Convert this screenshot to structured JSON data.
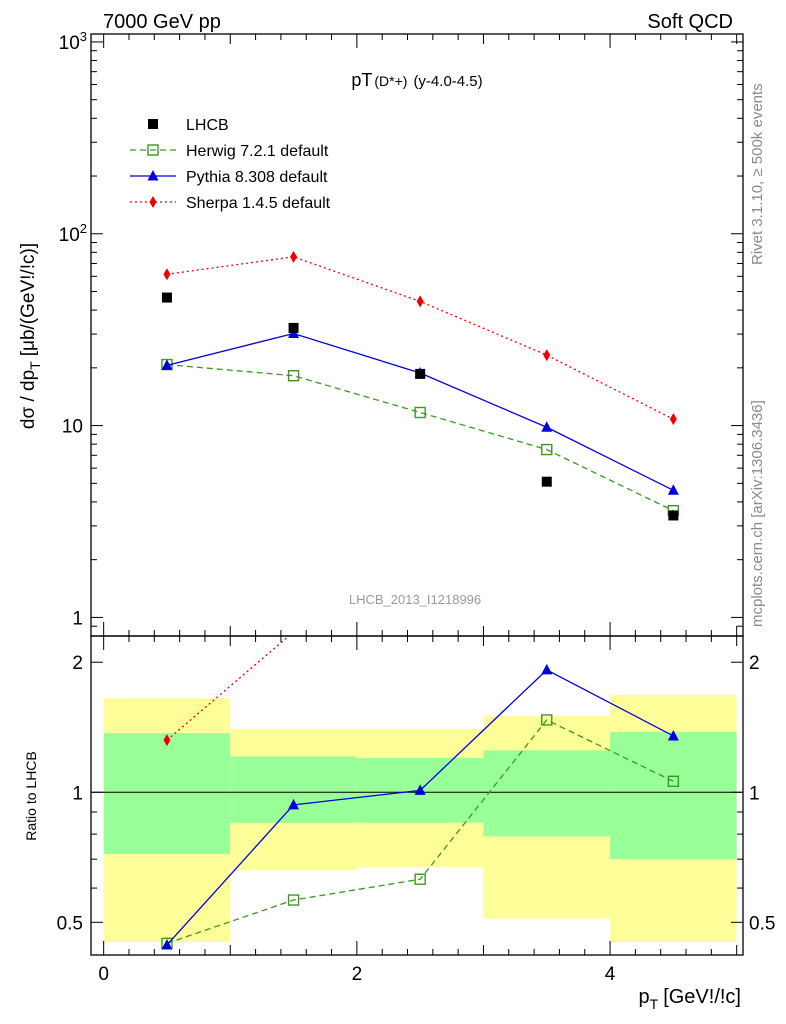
{
  "header": {
    "left": "7000 GeV pp",
    "right": "Soft QCD"
  },
  "side": {
    "rivet": "Rivet 3.1.10, ≥ 500k events",
    "mcplots": "mcplots.cern.ch [arXiv:1306.3436]"
  },
  "chart_data": [
    {
      "type": "scatter",
      "title": "pT",
      "title_sub": "(D*+)",
      "title_rest": "(y-4.0-4.5)",
      "watermark": "LHCB_2013_I1218996",
      "xlabel": "",
      "ylabel": "dσ / dp",
      "ylabel_sub": "T",
      "ylabel_unit": "[μb/(GeV!/!c)]",
      "yscale": "log",
      "ylim": [
        0.8,
        1100
      ],
      "xlim": [
        -0.1,
        5.05
      ],
      "yticks": [
        {
          "v": 1,
          "label": "1"
        },
        {
          "v": 10,
          "label": "10"
        },
        {
          "v": 100,
          "label": "10",
          "exp": "2"
        },
        {
          "v": 1000,
          "label": "10",
          "exp": "3"
        }
      ],
      "legend_position": "top-left",
      "x": [
        0.5,
        1.5,
        2.5,
        3.5,
        4.5
      ],
      "series": [
        {
          "name": "LHCB",
          "color": "#000000",
          "marker": "square",
          "line": "none",
          "values": [
            46.5,
            32.3,
            18.6,
            5.1,
            3.4
          ]
        },
        {
          "name": "Herwig 7.2.1 default",
          "color": "#3a9a1e",
          "marker": "open-square",
          "line": "dashed",
          "values": [
            20.8,
            18.2,
            11.7,
            7.5,
            3.6
          ]
        },
        {
          "name": "Pythia 8.308 default",
          "color": "#0000dd",
          "marker": "triangle",
          "line": "solid",
          "values": [
            20.6,
            30.2,
            18.8,
            9.8,
            4.6
          ]
        },
        {
          "name": "Sherpa 1.4.5 default",
          "color": "#ee0000",
          "marker": "diamond",
          "line": "dotted",
          "values": [
            61.5,
            75.8,
            44.4,
            23.3,
            10.8
          ]
        }
      ]
    },
    {
      "type": "scatter",
      "title": "",
      "xlabel": "p",
      "xlabel_sub": "T",
      "xlabel_unit": "[GeV!/!c]",
      "ylabel": "Ratio to LHCB",
      "yscale": "log",
      "ylim": [
        0.42,
        2.3
      ],
      "xlim": [
        -0.1,
        5.05
      ],
      "xticks": [
        {
          "v": 0,
          "label": "0"
        },
        {
          "v": 2,
          "label": "2"
        },
        {
          "v": 4,
          "label": "4"
        }
      ],
      "yticks": [
        {
          "v": 0.5,
          "label": "0.5"
        },
        {
          "v": 1,
          "label": "1"
        },
        {
          "v": 2,
          "label": "2"
        }
      ],
      "x": [
        0.5,
        1.5,
        2.5,
        3.5,
        4.5
      ],
      "bins": [
        [
          0,
          1
        ],
        [
          1,
          2
        ],
        [
          2,
          3
        ],
        [
          3,
          4
        ],
        [
          4,
          5
        ]
      ],
      "band_outer": [
        [
          0.45,
          1.65
        ],
        [
          0.66,
          1.4
        ],
        [
          0.67,
          1.4
        ],
        [
          0.51,
          1.5
        ],
        [
          0.45,
          1.68
        ]
      ],
      "band_inner": [
        [
          0.72,
          1.37
        ],
        [
          0.85,
          1.21
        ],
        [
          0.85,
          1.2
        ],
        [
          0.79,
          1.25
        ],
        [
          0.7,
          1.38
        ]
      ],
      "band_colors": {
        "outer": "#fefe99",
        "inner": "#99ff99"
      },
      "series": [
        {
          "name": "Herwig 7.2.1 default",
          "color": "#3a9a1e",
          "values": [
            0.447,
            0.563,
            0.629,
            1.47,
            1.06
          ]
        },
        {
          "name": "Pythia 8.308 default",
          "color": "#0000dd",
          "values": [
            0.443,
            0.935,
            1.01,
            1.92,
            1.35
          ]
        },
        {
          "name": "Sherpa 1.4.5 default",
          "color": "#ee0000",
          "values": [
            1.32,
            2.35,
            2.39,
            null,
            null
          ]
        }
      ]
    }
  ]
}
